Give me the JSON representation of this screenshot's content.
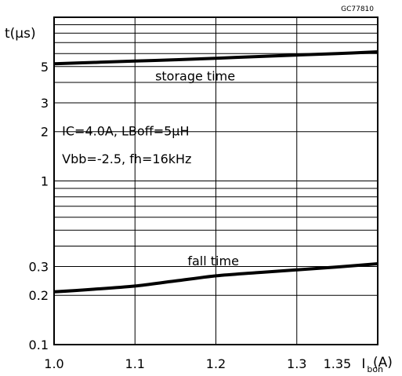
{
  "chart_data": {
    "type": "line",
    "code": "GC77810",
    "ylabel": "t(μs)",
    "xlabel": "I",
    "xlabel_sub": "bon",
    "xlabel_unit": "(A)",
    "x_scale": "linear",
    "y_scale": "log",
    "xlim": [
      1.0,
      1.4
    ],
    "ylim": [
      0.1,
      10
    ],
    "grid": true,
    "x_ticks": [
      {
        "value": 1.0,
        "label": "1.0"
      },
      {
        "value": 1.1,
        "label": "1.1"
      },
      {
        "value": 1.2,
        "label": "1.2"
      },
      {
        "value": 1.3,
        "label": "1.3"
      },
      {
        "value": 1.35,
        "label": "1.35"
      }
    ],
    "x_grid": [
      1.0,
      1.1,
      1.2,
      1.3,
      1.4
    ],
    "y_ticks": [
      {
        "value": 0.1,
        "label": "0.1"
      },
      {
        "value": 0.2,
        "label": "0.2"
      },
      {
        "value": 0.3,
        "label": "0.3"
      },
      {
        "value": 1,
        "label": "1"
      },
      {
        "value": 2,
        "label": "2"
      },
      {
        "value": 3,
        "label": "3"
      },
      {
        "value": 5,
        "label": "5"
      }
    ],
    "y_grid": [
      0.1,
      0.2,
      0.3,
      0.4,
      0.5,
      0.6,
      0.7,
      0.8,
      0.9,
      1,
      2,
      3,
      4,
      5,
      6,
      7,
      8,
      9,
      10
    ],
    "annotations": [
      {
        "text": "IC=4.0A, LBoff=5μH",
        "x": 1.005,
        "y": 1.9
      },
      {
        "text": "Vbb=-2.5, fh=16kHz",
        "x": 1.005,
        "y": 1.28
      }
    ],
    "series": [
      {
        "name": "storage time",
        "label_x": 1.125,
        "label_y": 4.1,
        "x": [
          1.0,
          1.05,
          1.1,
          1.15,
          1.2,
          1.25,
          1.3,
          1.35,
          1.4
        ],
        "y": [
          5.2,
          5.3,
          5.4,
          5.5,
          5.62,
          5.75,
          5.88,
          6.0,
          6.15
        ]
      },
      {
        "name": "fall time",
        "label_x": 1.165,
        "label_y": 0.305,
        "x": [
          1.0,
          1.05,
          1.1,
          1.15,
          1.2,
          1.25,
          1.3,
          1.35,
          1.4
        ],
        "y": [
          0.21,
          0.218,
          0.228,
          0.245,
          0.263,
          0.275,
          0.286,
          0.298,
          0.312
        ]
      }
    ]
  }
}
